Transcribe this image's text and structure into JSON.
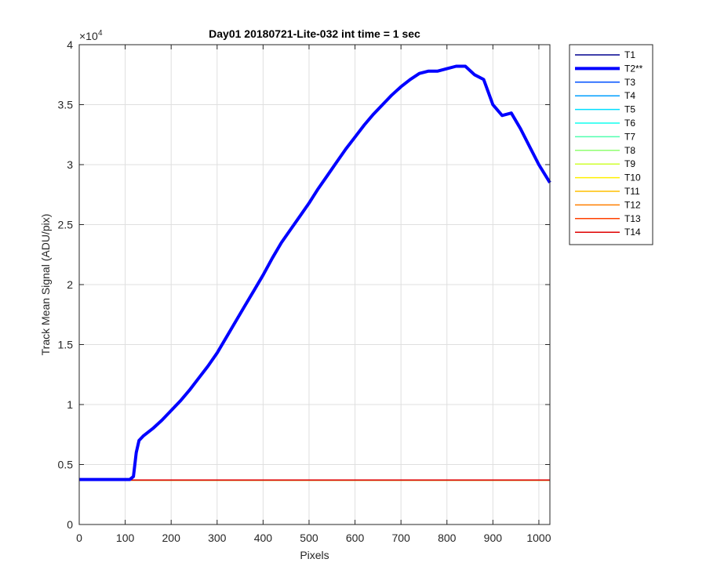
{
  "chart_data": {
    "type": "line",
    "title": "Day01 20180721-Lite-032 int time = 1 sec",
    "xlabel": "Pixels",
    "ylabel": "Track Mean Signal (ADU/pix)",
    "y_exponent_label": "×10",
    "y_exponent_power": "4",
    "xlim": [
      0,
      1024
    ],
    "ylim": [
      0,
      40000
    ],
    "xticks": [
      0,
      100,
      200,
      300,
      400,
      500,
      600,
      700,
      800,
      900,
      1000
    ],
    "yticks": [
      0,
      5000,
      10000,
      15000,
      20000,
      25000,
      30000,
      35000,
      40000
    ],
    "ytick_labels": [
      "0",
      "0.5",
      "1",
      "1.5",
      "2",
      "2.5",
      "3",
      "3.5",
      "4"
    ],
    "grid": true,
    "legend_position": "outside-right",
    "series": [
      {
        "name": "T1",
        "color": "#00008f",
        "width": 1.5,
        "flat": 3680
      },
      {
        "name": "T2**",
        "color": "#0000ff",
        "width": 4,
        "x": [
          0,
          110,
          118,
          124,
          130,
          140,
          160,
          180,
          200,
          220,
          240,
          260,
          280,
          300,
          320,
          340,
          360,
          380,
          400,
          420,
          440,
          460,
          480,
          500,
          520,
          540,
          560,
          580,
          600,
          620,
          640,
          660,
          680,
          700,
          720,
          740,
          760,
          780,
          800,
          820,
          840,
          860,
          880,
          900,
          920,
          940,
          960,
          980,
          1000,
          1024
        ],
        "y": [
          3750,
          3750,
          4000,
          6000,
          7000,
          7400,
          8000,
          8700,
          9500,
          10300,
          11200,
          12200,
          13200,
          14300,
          15600,
          16900,
          18200,
          19500,
          20800,
          22200,
          23500,
          24600,
          25700,
          26800,
          28000,
          29100,
          30200,
          31300,
          32300,
          33300,
          34200,
          35000,
          35800,
          36500,
          37100,
          37600,
          37800,
          37800,
          38000,
          38200,
          38200,
          37500,
          37100,
          35000,
          34100,
          34300,
          33000,
          31500,
          30000,
          28500
        ]
      },
      {
        "name": "T3",
        "color": "#0050ff",
        "width": 1.5,
        "flat": 3690
      },
      {
        "name": "T4",
        "color": "#009fff",
        "width": 1.5,
        "flat": 3700
      },
      {
        "name": "T5",
        "color": "#00dfff",
        "width": 1.5,
        "flat": 3700
      },
      {
        "name": "T6",
        "color": "#10ffef",
        "width": 1.5,
        "flat": 3700
      },
      {
        "name": "T7",
        "color": "#50ffaf",
        "width": 1.5,
        "flat": 3700
      },
      {
        "name": "T8",
        "color": "#8fff70",
        "width": 1.5,
        "flat": 3700
      },
      {
        "name": "T9",
        "color": "#cfff30",
        "width": 1.5,
        "flat": 3700
      },
      {
        "name": "T10",
        "color": "#ffef00",
        "width": 1.5,
        "flat": 3700
      },
      {
        "name": "T11",
        "color": "#ffbf00",
        "width": 1.5,
        "flat": 3700
      },
      {
        "name": "T12",
        "color": "#ff7f00",
        "width": 1.5,
        "flat": 3700
      },
      {
        "name": "T13",
        "color": "#ff4000",
        "width": 1.5,
        "flat": 3700
      },
      {
        "name": "T14",
        "color": "#df0000",
        "width": 1.5,
        "flat": 3710
      }
    ]
  }
}
